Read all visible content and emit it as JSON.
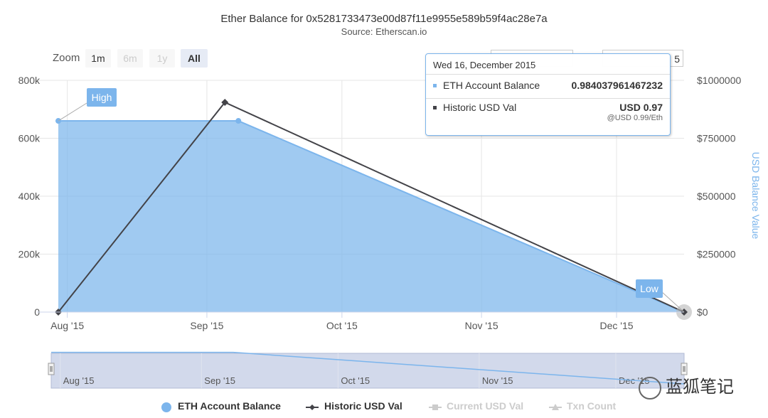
{
  "title": "Ether Balance for 0x5281733473e00d87f11e9955e589b59f4ac28e7a",
  "subtitle": "Source: Etherscan.io",
  "zoom": {
    "label": "Zoom",
    "buttons": [
      "1m",
      "6m",
      "1y",
      "All"
    ],
    "selected": "All",
    "disabled": [
      "6m",
      "1y"
    ]
  },
  "range_input_visible_char": "5",
  "tooltip": {
    "date": "Wed 16, December 2015",
    "rows": [
      {
        "name": "ETH Account Balance",
        "value": "0.984037961467232",
        "color": "#7cb5ec"
      },
      {
        "name": "Historic USD Val",
        "value": "USD 0.97",
        "color": "#434348"
      }
    ],
    "sub": "@USD 0.99/Eth"
  },
  "flags": {
    "high": "High",
    "low": "Low"
  },
  "navigator": {
    "labels": [
      "Aug '15",
      "Sep '15",
      "Oct '15",
      "Nov '15",
      "Dec '15"
    ]
  },
  "legend": [
    {
      "name": "ETH Account Balance",
      "symbol": "circle",
      "color": "#7cb5ec",
      "visible": true
    },
    {
      "name": "Historic USD Val",
      "symbol": "line-diamond",
      "color": "#434348",
      "visible": true
    },
    {
      "name": "Current USD Val",
      "symbol": "line-square",
      "color": "#cccccc",
      "visible": false
    },
    {
      "name": "Txn Count",
      "symbol": "line-triangle",
      "color": "#cccccc",
      "visible": false
    }
  ],
  "watermark": "蓝狐笔记",
  "colors": {
    "eth_area": "#7cb5ec",
    "usd_line": "#434348",
    "axis_title": "#7cb5ec",
    "grid": "#e6e6e6"
  },
  "chart_data": {
    "type": "area",
    "x_axis": {
      "type": "datetime",
      "tick_labels": [
        "Aug '15",
        "Sep '15",
        "Oct '15",
        "Nov '15",
        "Dec '15"
      ],
      "ticks": [
        "2015-08-01",
        "2015-09-01",
        "2015-10-01",
        "2015-11-01",
        "2015-12-01"
      ],
      "range": [
        "2015-07-30",
        "2015-12-16"
      ]
    },
    "y_axis_left": {
      "ylim": [
        0,
        800000
      ],
      "tick_labels": [
        "0",
        "200k",
        "400k",
        "600k",
        "800k"
      ],
      "ticks": [
        0,
        200000,
        400000,
        600000,
        800000
      ]
    },
    "y_axis_right": {
      "title": "USD Balance Value",
      "ylim": [
        0,
        1000000
      ],
      "tick_labels": [
        "$0",
        "$250000",
        "$500000",
        "$750000",
        "$1000000"
      ],
      "ticks": [
        0,
        250000,
        500000,
        750000,
        1000000
      ]
    },
    "series": [
      {
        "name": "ETH Account Balance",
        "type": "area",
        "axis": "left",
        "color": "#7cb5ec",
        "points": [
          {
            "x": "2015-07-30",
            "y": 660000
          },
          {
            "x": "2015-09-08",
            "y": 660000
          },
          {
            "x": "2015-12-16",
            "y": 0.98
          }
        ]
      },
      {
        "name": "Historic USD Val",
        "type": "line",
        "axis": "right",
        "color": "#434348",
        "marker": "diamond",
        "points": [
          {
            "x": "2015-07-30",
            "y": 0
          },
          {
            "x": "2015-09-05",
            "y": 905000
          },
          {
            "x": "2015-12-16",
            "y": 0.97
          }
        ]
      }
    ],
    "grid": true,
    "legend_placement": "bottom"
  }
}
